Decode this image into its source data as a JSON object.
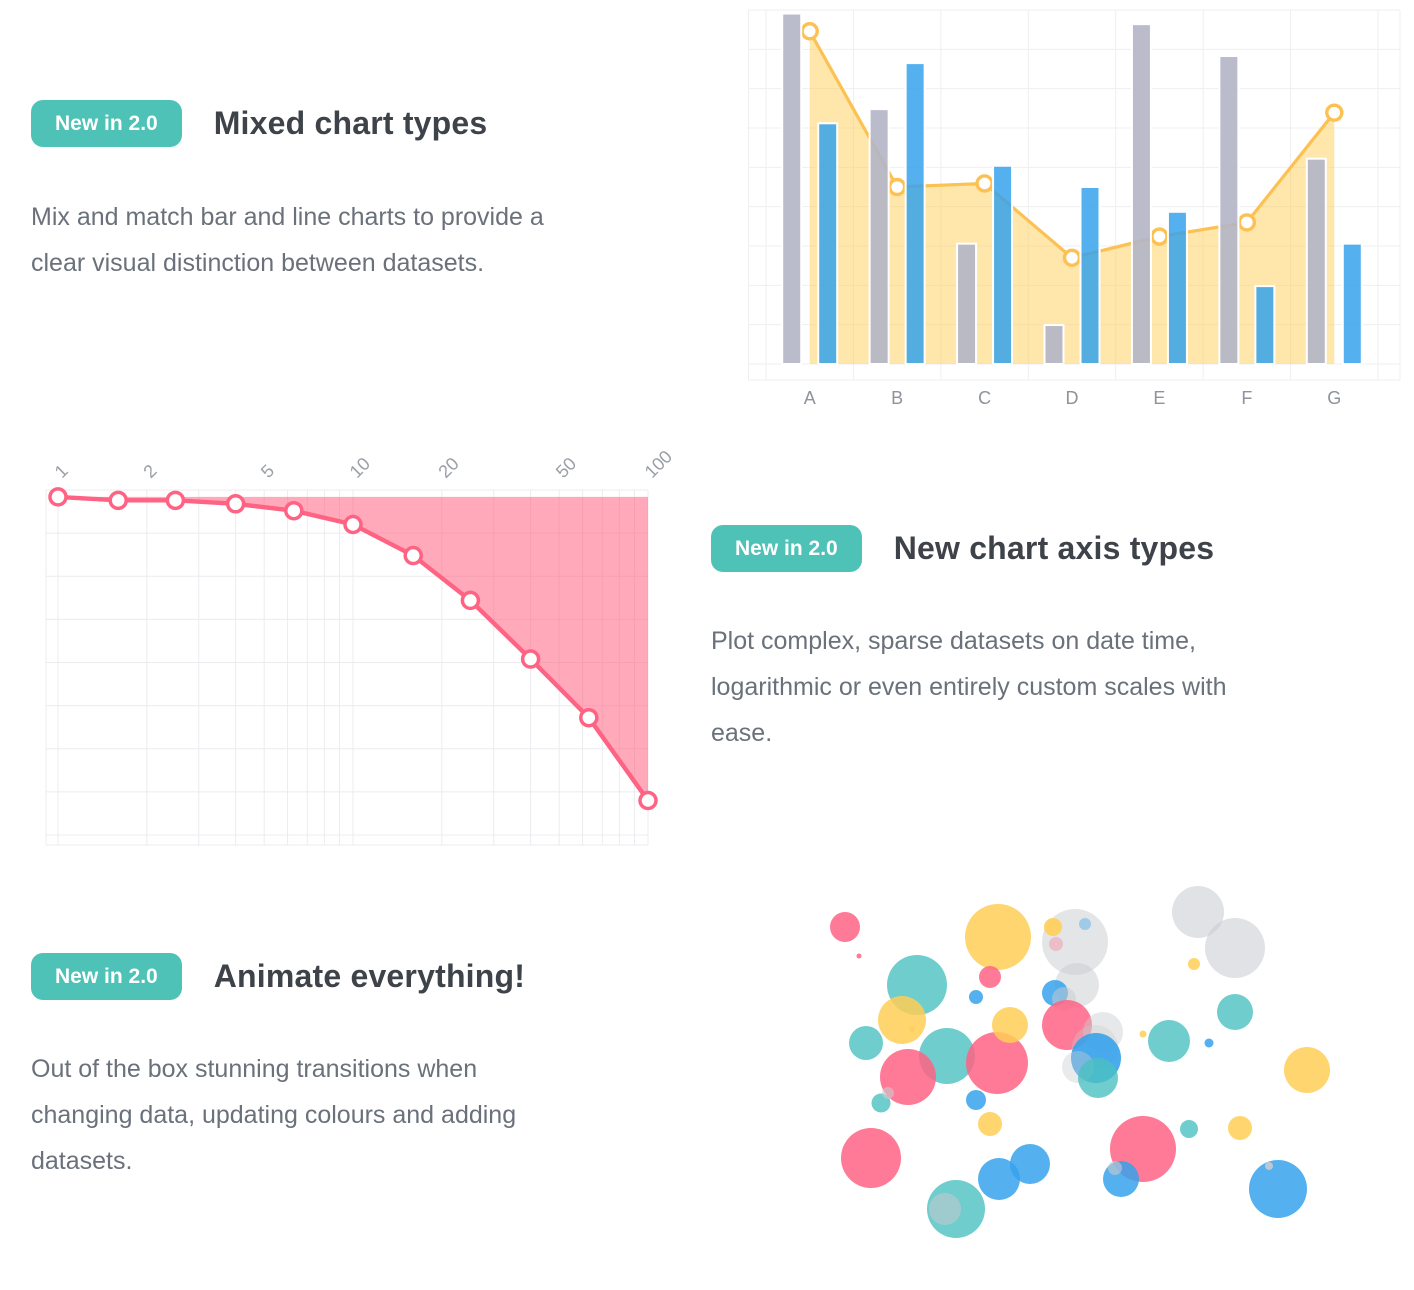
{
  "sections": {
    "mixed": {
      "badge": "New in 2.0",
      "title": "Mixed chart types",
      "body": "Mix and match bar and line charts to provide a\nclear visual distinction between datasets."
    },
    "axis": {
      "badge": "New in 2.0",
      "title": "New chart axis types",
      "body": "Plot complex, sparse datasets on date time,\nlogarithmic or even entirely custom scales with\nease."
    },
    "animate": {
      "badge": "New in 2.0",
      "title": "Animate everything!",
      "body": "Out of the box stunning transitions when\nchanging data, updating colours and adding\ndatasets."
    }
  },
  "theme": {
    "badge_bg": "#4ec2b6",
    "badge_fg": "#ffffff",
    "heading": "#3e4349",
    "body": "#6a717a"
  },
  "chart_data": [
    {
      "id": "mixed-bar-line",
      "type": "bar",
      "legend": "none",
      "grid": true,
      "title": "",
      "xlabel": "",
      "ylabel": "",
      "ylim": [
        0,
        100
      ],
      "categories": [
        "A",
        "B",
        "C",
        "D",
        "E",
        "F",
        "G"
      ],
      "series": [
        {
          "name": "gray bars",
          "kind": "bar",
          "color": "rgba(179,181,198,0.9)",
          "border": "#ffffff",
          "values": [
            99,
            72,
            34,
            11,
            96,
            87,
            58
          ]
        },
        {
          "name": "blue bars",
          "kind": "bar",
          "color": "rgba(54,162,235,0.85)",
          "border": "#ffffff",
          "values": [
            68,
            85,
            56,
            50,
            43,
            22,
            34
          ]
        },
        {
          "name": "yellow line",
          "kind": "line-area",
          "color": "#fcc152",
          "fill": "rgba(255,206,86,0.5)",
          "point_fill": "#ffffff",
          "values": [
            94,
            50,
            51,
            30,
            36,
            40,
            71
          ]
        }
      ],
      "grid_color": "#efeff3",
      "label_color": "#8d939a"
    },
    {
      "id": "log-line",
      "type": "line",
      "x_scale": "log",
      "grid": true,
      "legend": "none",
      "title": "",
      "xlabel": "",
      "ylabel": "",
      "xlim": [
        1,
        100
      ],
      "ylim": [
        0,
        1
      ],
      "x": [
        1,
        1.6,
        2.5,
        4,
        6.3,
        10,
        16,
        25,
        40,
        63,
        100
      ],
      "values": [
        0.98,
        0.97,
        0.97,
        0.96,
        0.94,
        0.9,
        0.81,
        0.68,
        0.51,
        0.34,
        0.1
      ],
      "x_ticks": [
        1,
        2,
        5,
        10,
        20,
        50,
        100
      ],
      "x_minor_ticks": [
        1,
        2,
        3,
        4,
        5,
        6,
        7,
        8,
        9,
        10,
        20,
        30,
        40,
        50,
        60,
        70,
        80,
        90,
        100
      ],
      "line_color": "#ff6384",
      "fill_color": "rgba(255,99,132,0.55)",
      "fill_to": "top",
      "point_fill": "#ffffff",
      "grid_color": "#ececf0",
      "tick_color": "#9aa0a6"
    },
    {
      "id": "bubble",
      "type": "bubble",
      "legend": "none",
      "grid": false,
      "palette": {
        "pink": "#ff6384",
        "blue": "#36a2eb",
        "yellow": "#ffce56",
        "teal": "#4bc0c0",
        "gray": "#c9cbcf"
      },
      "points": [
        {
          "x": 35,
          "y": 52,
          "r": 15,
          "c": "pink",
          "a": 0.85
        },
        {
          "x": 49,
          "y": 81,
          "r": 2.5,
          "c": "pink",
          "a": 0.85
        },
        {
          "x": 107,
          "y": 110,
          "r": 30,
          "c": "teal",
          "a": 0.8
        },
        {
          "x": 188,
          "y": 62,
          "r": 33,
          "c": "yellow",
          "a": 0.85
        },
        {
          "x": 180,
          "y": 102,
          "r": 11,
          "c": "pink",
          "a": 0.85
        },
        {
          "x": 265,
          "y": 67,
          "r": 33,
          "c": "gray",
          "a": 0.5
        },
        {
          "x": 243,
          "y": 52,
          "r": 9,
          "c": "yellow",
          "a": 0.9
        },
        {
          "x": 275,
          "y": 49,
          "r": 6,
          "c": "blue",
          "a": 0.4
        },
        {
          "x": 246,
          "y": 69,
          "r": 7,
          "c": "pink",
          "a": 0.3
        },
        {
          "x": 92,
          "y": 145,
          "r": 24,
          "c": "yellow",
          "a": 0.85
        },
        {
          "x": 102,
          "y": 154,
          "r": 3,
          "c": "yellow",
          "a": 0.9
        },
        {
          "x": 166,
          "y": 122,
          "r": 7,
          "c": "blue",
          "a": 0.85
        },
        {
          "x": 56,
          "y": 168,
          "r": 17,
          "c": "teal",
          "a": 0.8
        },
        {
          "x": 137,
          "y": 181,
          "r": 28,
          "c": "teal",
          "a": 0.8
        },
        {
          "x": 98,
          "y": 202,
          "r": 28,
          "c": "pink",
          "a": 0.85
        },
        {
          "x": 187,
          "y": 188,
          "r": 31,
          "c": "pink",
          "a": 0.85
        },
        {
          "x": 200,
          "y": 150,
          "r": 18,
          "c": "yellow",
          "a": 0.85
        },
        {
          "x": 267,
          "y": 110,
          "r": 22,
          "c": "gray",
          "a": 0.5
        },
        {
          "x": 245,
          "y": 118,
          "r": 13,
          "c": "blue",
          "a": 0.85
        },
        {
          "x": 254,
          "y": 124,
          "r": 12,
          "c": "gray",
          "a": 0.5
        },
        {
          "x": 257,
          "y": 150,
          "r": 25,
          "c": "pink",
          "a": 0.85
        },
        {
          "x": 293,
          "y": 157,
          "r": 20,
          "c": "gray",
          "a": 0.45
        },
        {
          "x": 285,
          "y": 173,
          "r": 23,
          "c": "gray",
          "a": 0.35
        },
        {
          "x": 286,
          "y": 183,
          "r": 25,
          "c": "blue",
          "a": 0.9
        },
        {
          "x": 268,
          "y": 192,
          "r": 16,
          "c": "gray",
          "a": 0.4
        },
        {
          "x": 288,
          "y": 203,
          "r": 20,
          "c": "teal",
          "a": 0.8
        },
        {
          "x": 388,
          "y": 37,
          "r": 26,
          "c": "gray",
          "a": 0.55
        },
        {
          "x": 425,
          "y": 73,
          "r": 30,
          "c": "gray",
          "a": 0.55
        },
        {
          "x": 384,
          "y": 89,
          "r": 6,
          "c": "yellow",
          "a": 0.85
        },
        {
          "x": 425,
          "y": 137,
          "r": 18,
          "c": "teal",
          "a": 0.8
        },
        {
          "x": 359,
          "y": 166,
          "r": 21,
          "c": "teal",
          "a": 0.8
        },
        {
          "x": 333,
          "y": 159,
          "r": 3.5,
          "c": "yellow",
          "a": 0.85
        },
        {
          "x": 399,
          "y": 168,
          "r": 4.5,
          "c": "blue",
          "a": 0.85
        },
        {
          "x": 497,
          "y": 195,
          "r": 23,
          "c": "yellow",
          "a": 0.85
        },
        {
          "x": 71,
          "y": 228,
          "r": 9.5,
          "c": "teal",
          "a": 0.8
        },
        {
          "x": 78,
          "y": 218,
          "r": 6,
          "c": "gray",
          "a": 0.6
        },
        {
          "x": 166,
          "y": 225,
          "r": 10,
          "c": "blue",
          "a": 0.85
        },
        {
          "x": 180,
          "y": 249,
          "r": 12,
          "c": "yellow",
          "a": 0.85
        },
        {
          "x": 61,
          "y": 283,
          "r": 30,
          "c": "pink",
          "a": 0.85
        },
        {
          "x": 146,
          "y": 334,
          "r": 29,
          "c": "teal",
          "a": 0.8
        },
        {
          "x": 135,
          "y": 334,
          "r": 16,
          "c": "gray",
          "a": 0.55
        },
        {
          "x": 189,
          "y": 304,
          "r": 21,
          "c": "blue",
          "a": 0.85
        },
        {
          "x": 220,
          "y": 289,
          "r": 20,
          "c": "blue",
          "a": 0.85
        },
        {
          "x": 333,
          "y": 274,
          "r": 33,
          "c": "pink",
          "a": 0.85
        },
        {
          "x": 379,
          "y": 254,
          "r": 9,
          "c": "teal",
          "a": 0.8
        },
        {
          "x": 430,
          "y": 253,
          "r": 12,
          "c": "yellow",
          "a": 0.85
        },
        {
          "x": 311,
          "y": 304,
          "r": 18,
          "c": "blue",
          "a": 0.85
        },
        {
          "x": 305,
          "y": 293,
          "r": 7,
          "c": "gray",
          "a": 0.6
        },
        {
          "x": 468,
          "y": 314,
          "r": 29,
          "c": "blue",
          "a": 0.85
        },
        {
          "x": 459,
          "y": 291,
          "r": 4,
          "c": "gray",
          "a": 0.9
        }
      ]
    }
  ]
}
